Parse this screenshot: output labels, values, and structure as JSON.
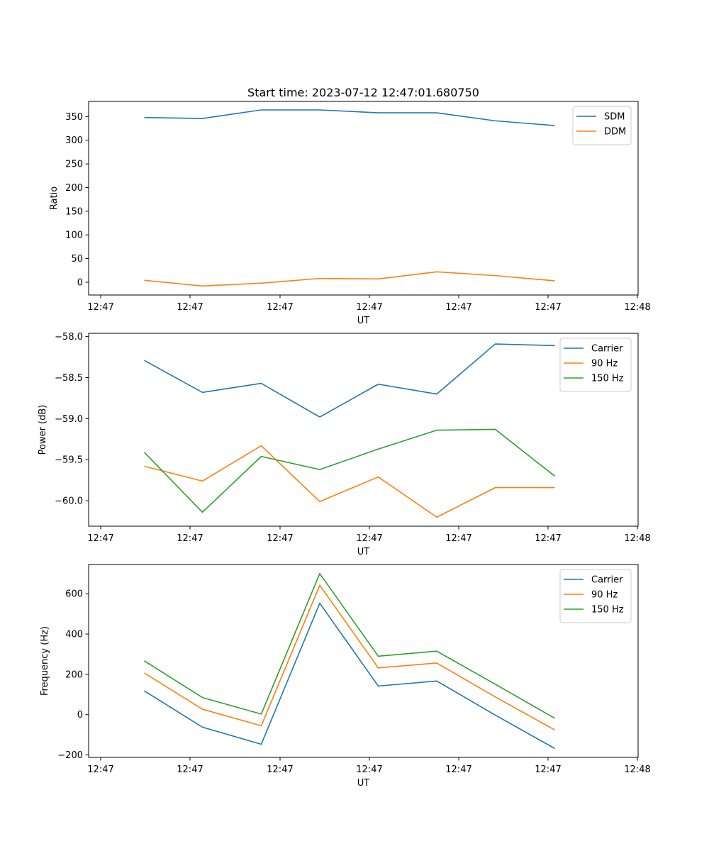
{
  "figure_title": "Start time: 2023-07-12 12:47:01.680750",
  "colors": {
    "blue": "#1f77b4",
    "orange": "#ff7f0e",
    "green": "#2ca02c"
  },
  "chart_data": [
    {
      "type": "line",
      "title": "Start time: 2023-07-12 12:47:01.680750",
      "xlabel": "UT",
      "ylabel": "Ratio",
      "x_tick_labels": [
        "12:47",
        "12:47",
        "12:47",
        "12:47",
        "12:47",
        "12:47",
        "12:48"
      ],
      "y_ticks": [
        0,
        50,
        100,
        150,
        200,
        250,
        300,
        350
      ],
      "y_tick_labels": [
        "0",
        "50",
        "100",
        "150",
        "200",
        "250",
        "300",
        "350"
      ],
      "ylim": [
        -27,
        382
      ],
      "legend": "top-right",
      "series": [
        {
          "name": "SDM",
          "color": "#1f77b4",
          "values": [
            348,
            346,
            364,
            364,
            358,
            358,
            341,
            331
          ]
        },
        {
          "name": "DDM",
          "color": "#ff7f0e",
          "values": [
            4,
            -8,
            -2,
            8,
            7,
            22,
            14,
            3
          ]
        }
      ]
    },
    {
      "type": "line",
      "title": "",
      "xlabel": "UT",
      "ylabel": "Power (dB)",
      "x_tick_labels": [
        "12:47",
        "12:47",
        "12:47",
        "12:47",
        "12:47",
        "12:47",
        "12:48"
      ],
      "y_ticks": [
        -60.0,
        -59.5,
        -59.0,
        -58.5,
        -58.0
      ],
      "y_tick_labels": [
        "−60.0",
        "−59.5",
        "−59.0",
        "−58.5",
        "−58.0"
      ],
      "ylim": [
        -60.31,
        -57.96
      ],
      "legend": "top-right",
      "series": [
        {
          "name": "Carrier",
          "color": "#1f77b4",
          "values": [
            -58.29,
            -58.68,
            -58.57,
            -58.98,
            -58.58,
            -58.7,
            -58.09,
            -58.11
          ]
        },
        {
          "name": "90 Hz",
          "color": "#ff7f0e",
          "values": [
            -59.58,
            -59.76,
            -59.33,
            -60.01,
            -59.71,
            -60.2,
            -59.84,
            -59.84
          ]
        },
        {
          "name": "150 Hz",
          "color": "#2ca02c",
          "values": [
            -59.41,
            -60.14,
            -59.46,
            -59.62,
            -59.37,
            -59.14,
            -59.13,
            -59.7
          ]
        }
      ]
    },
    {
      "type": "line",
      "title": "",
      "xlabel": "UT",
      "ylabel": "Frequency (Hz)",
      "x_tick_labels": [
        "12:47",
        "12:47",
        "12:47",
        "12:47",
        "12:47",
        "12:47",
        "12:48"
      ],
      "y_ticks": [
        -200,
        0,
        200,
        400,
        600
      ],
      "y_tick_labels": [
        "−200",
        "0",
        "200",
        "400",
        "600"
      ],
      "ylim": [
        -212,
        745
      ],
      "legend": "top-right",
      "series": [
        {
          "name": "Carrier",
          "color": "#1f77b4",
          "values": [
            118,
            -62,
            -147,
            553,
            142,
            167,
            -2,
            -168
          ]
        },
        {
          "name": "90 Hz",
          "color": "#ff7f0e",
          "values": [
            207,
            27,
            -55,
            642,
            232,
            256,
            88,
            -76
          ]
        },
        {
          "name": "150 Hz",
          "color": "#2ca02c",
          "values": [
            267,
            85,
            3,
            700,
            290,
            315,
            151,
            -18
          ]
        }
      ]
    }
  ]
}
